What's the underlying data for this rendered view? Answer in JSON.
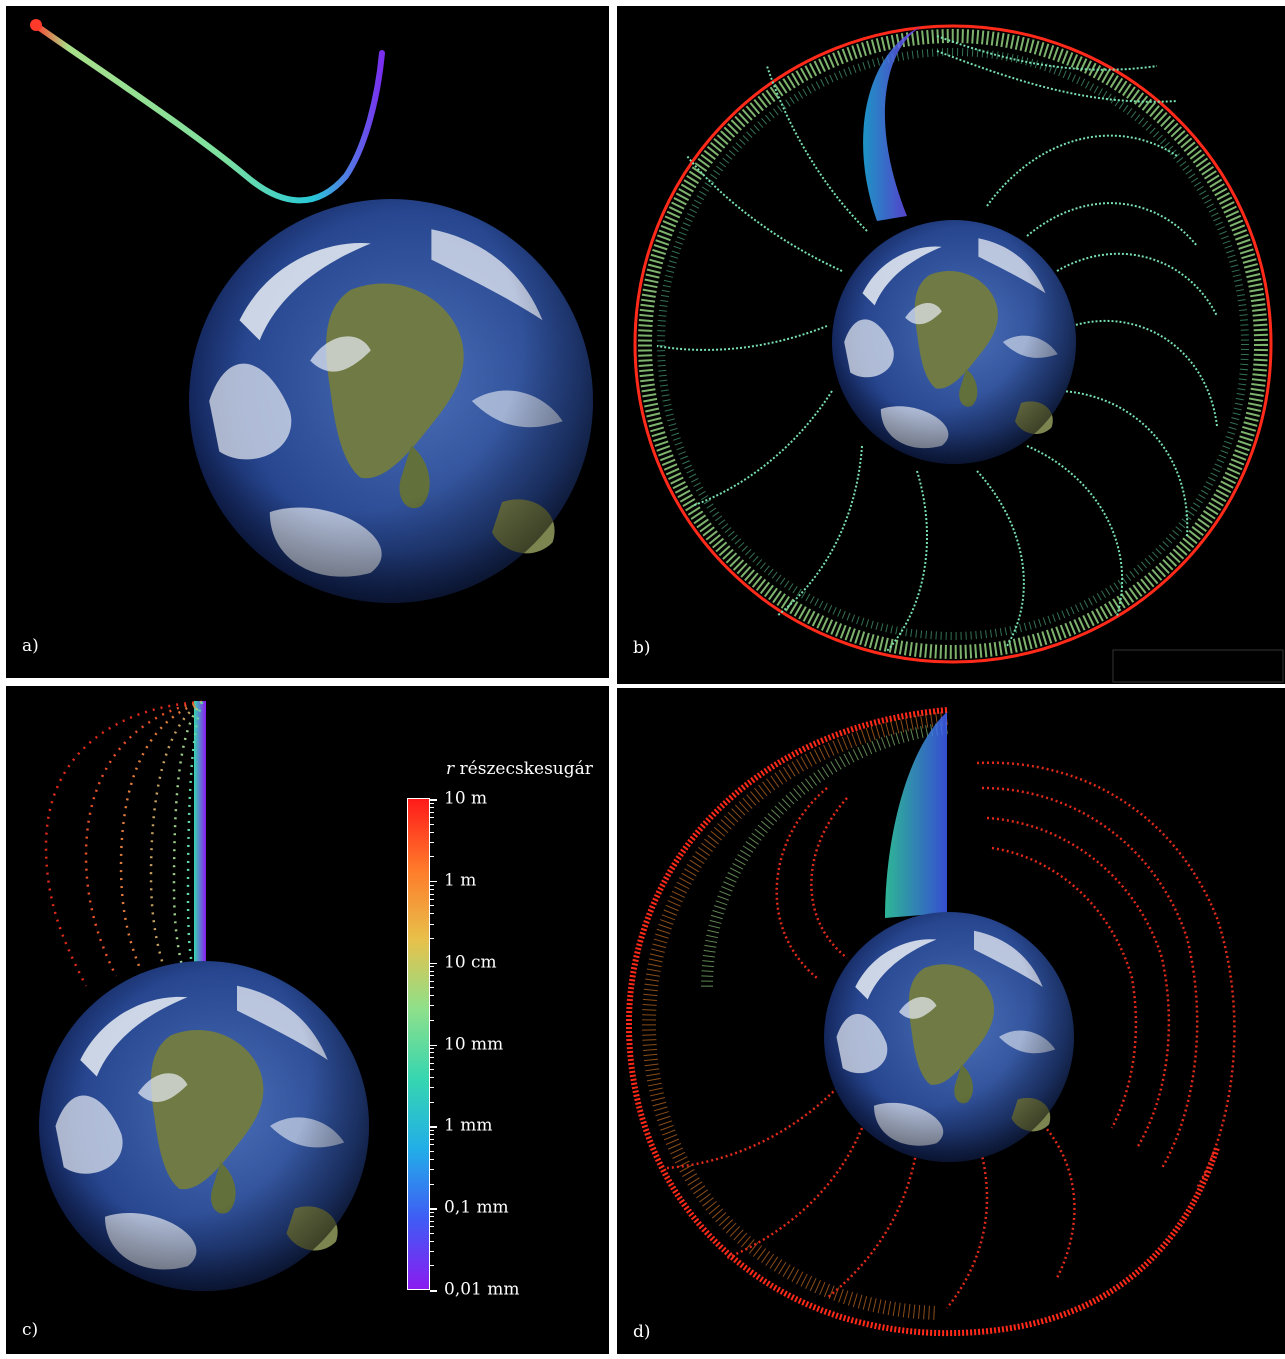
{
  "panels": [
    {
      "label": "a)"
    },
    {
      "label": "b)"
    },
    {
      "label": "c)"
    },
    {
      "label": "d)"
    }
  ],
  "colorbar": {
    "symbol": "r",
    "title": "részecskesugár",
    "ticks": [
      "10 m",
      "1 m",
      "10 cm",
      "10 mm",
      "1 mm",
      "0,1 mm",
      "0,01 mm"
    ],
    "colors": [
      "#ff1a1a",
      "#ff7a2a",
      "#e8c04a",
      "#8ee08a",
      "#36d6b0",
      "#22aee8",
      "#3f5cf5",
      "#8a1cf0"
    ]
  },
  "colors": {
    "background": "#000000",
    "ocean": "#27468f",
    "land": "#6f7a45",
    "cloud": "#e9eef5"
  },
  "icons": [
    "earth-globe"
  ]
}
